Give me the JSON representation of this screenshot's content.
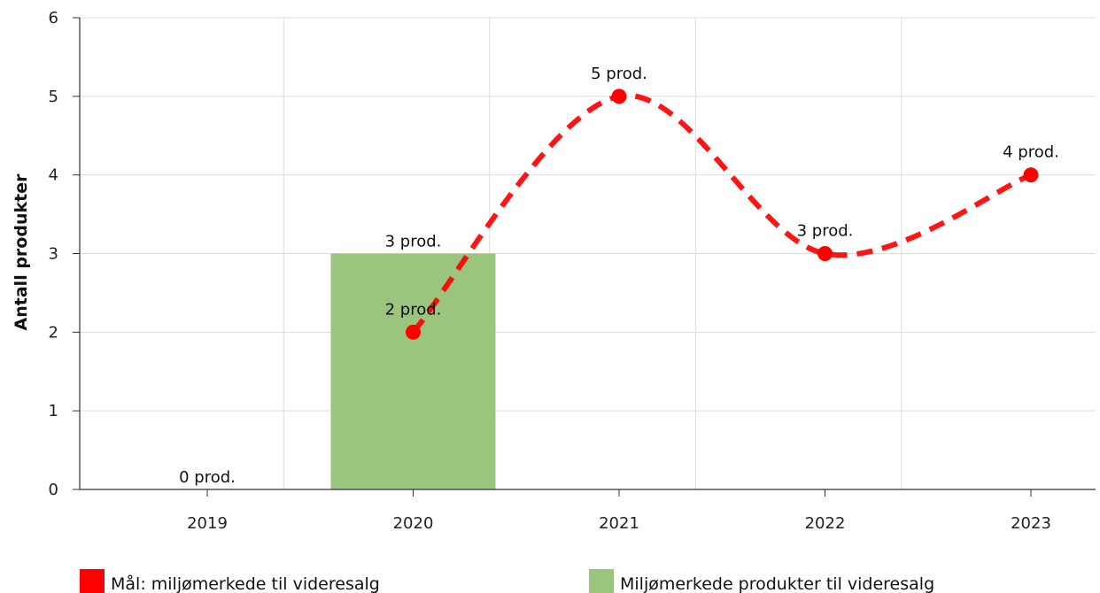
{
  "chart_data": {
    "type": "bar",
    "categories": [
      "2019",
      "2020",
      "2021",
      "2022",
      "2023"
    ],
    "ylabel": "Antall produkter",
    "ylim": [
      0,
      6
    ],
    "yticks": [
      0,
      1,
      2,
      3,
      4,
      5,
      6
    ],
    "grid": true,
    "legend_position": "bottom",
    "series": [
      {
        "name": "Miljømerkede produkter til videresalg",
        "type": "bar",
        "color": "#9bc47d",
        "values": [
          0,
          3,
          null,
          null,
          null
        ],
        "labels": [
          "0 prod.",
          "3 prod.",
          "",
          "",
          ""
        ]
      },
      {
        "name": "Mål: miljømerkede til videresalg",
        "type": "line",
        "style": "dashed-smooth",
        "color": "#ff0000",
        "values": [
          null,
          2,
          5,
          3,
          4
        ],
        "labels": [
          "",
          "2 prod.",
          "5 prod.",
          "3 prod.",
          "4 prod."
        ]
      }
    ]
  }
}
